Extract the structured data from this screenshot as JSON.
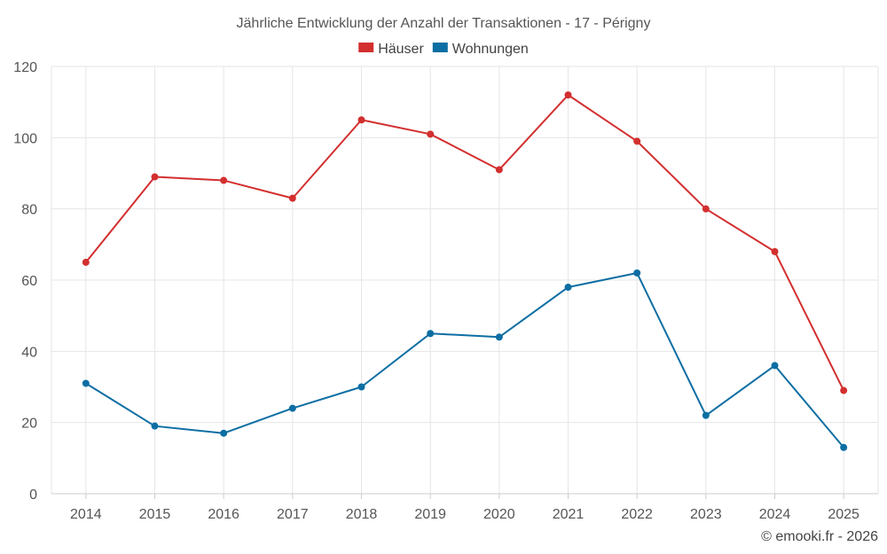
{
  "chart_data": {
    "type": "line",
    "title": "Jährliche Entwicklung der Anzahl der Transaktionen - 17 - Périgny",
    "categories": [
      "2014",
      "2015",
      "2016",
      "2017",
      "2018",
      "2019",
      "2020",
      "2021",
      "2022",
      "2023",
      "2024",
      "2025"
    ],
    "series": [
      {
        "name": "Häuser",
        "color": "#d32f2f",
        "values": [
          65,
          89,
          88,
          83,
          105,
          101,
          91,
          112,
          99,
          80,
          68,
          29
        ]
      },
      {
        "name": "Wohnungen",
        "color": "#0d6ea3",
        "values": [
          31,
          19,
          17,
          24,
          30,
          45,
          44,
          58,
          62,
          22,
          36,
          13
        ]
      }
    ],
    "ylim": [
      0,
      120
    ],
    "yticks": [
      0,
      20,
      40,
      60,
      80,
      100,
      120
    ],
    "ytick_labels": [
      "0",
      "20",
      "40",
      "60",
      "80",
      "100",
      "120"
    ],
    "xlabel": "",
    "ylabel": "",
    "grid": true,
    "legend_position": "top-center"
  },
  "credit": "© emooki.fr - 2026"
}
